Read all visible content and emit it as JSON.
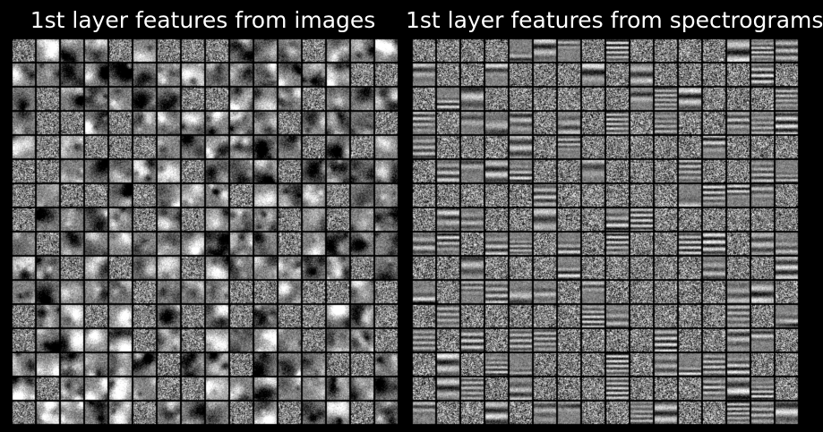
{
  "panels": [
    {
      "title": "1st layer features from images",
      "kind": "image_blobs",
      "grid_rows": 16,
      "grid_cols": 16
    },
    {
      "title": "1st layer features from spectrograms",
      "kind": "spectrogram_stripes",
      "grid_rows": 16,
      "grid_cols": 16
    }
  ],
  "colors": {
    "background": "#000000",
    "tile_border": "#000000",
    "text": "#ffffff"
  }
}
